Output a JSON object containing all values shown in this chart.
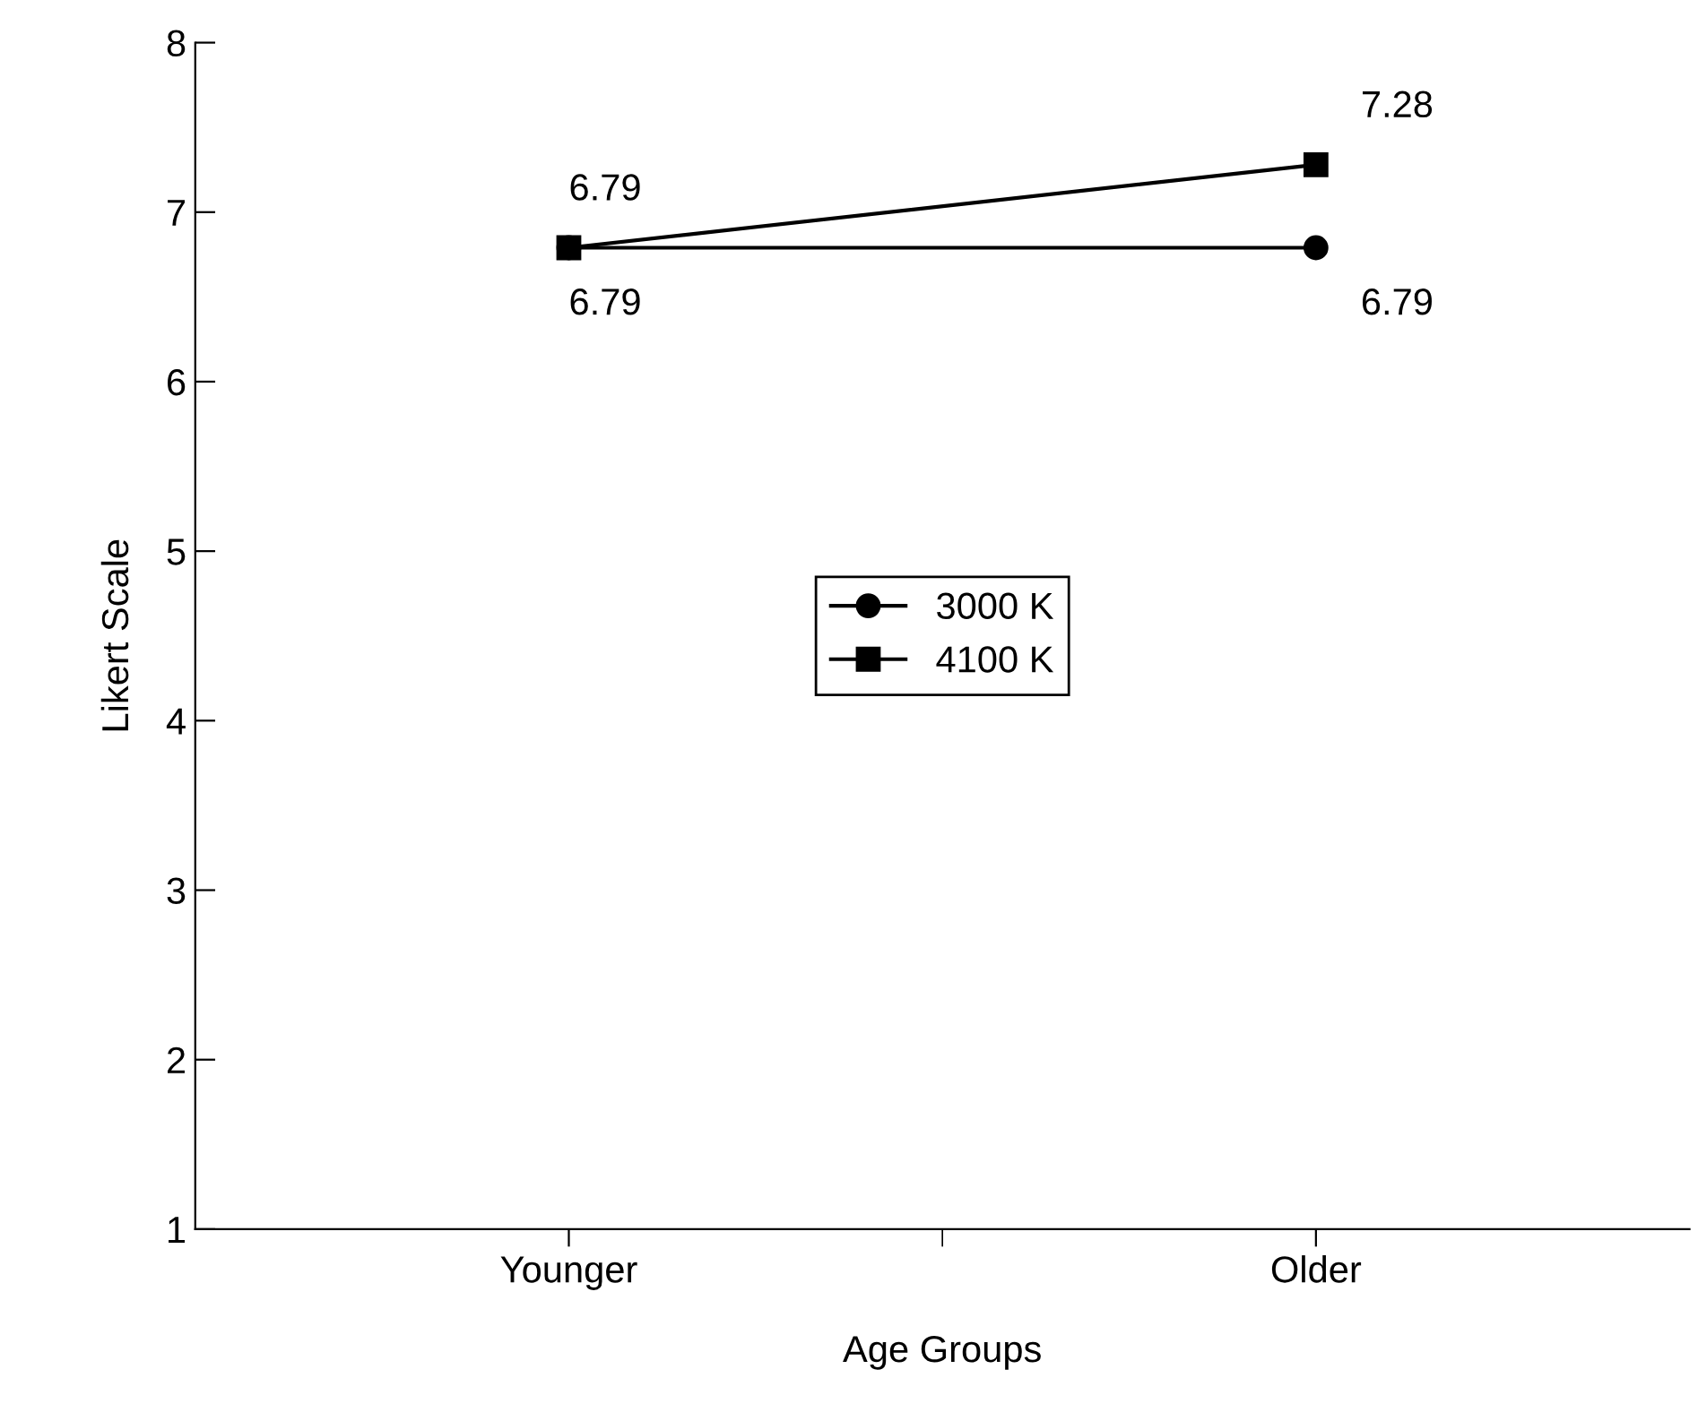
{
  "chart_data": {
    "type": "line",
    "xlabel": "Age Groups",
    "ylabel": "Likert Scale",
    "categories": [
      "Younger",
      "Older"
    ],
    "series": [
      {
        "name": "3000 K",
        "color": "#000000",
        "marker": "circle",
        "values": [
          6.79,
          6.79
        ]
      },
      {
        "name": "4100 K",
        "color": "#000000",
        "marker": "square",
        "values": [
          6.79,
          7.28
        ]
      }
    ],
    "ylim": [
      1,
      8
    ],
    "yticks": [
      1,
      2,
      3,
      4,
      5,
      6,
      7,
      8
    ],
    "data_labels": true,
    "legend": "center",
    "grid": false,
    "line_style": "solid"
  }
}
